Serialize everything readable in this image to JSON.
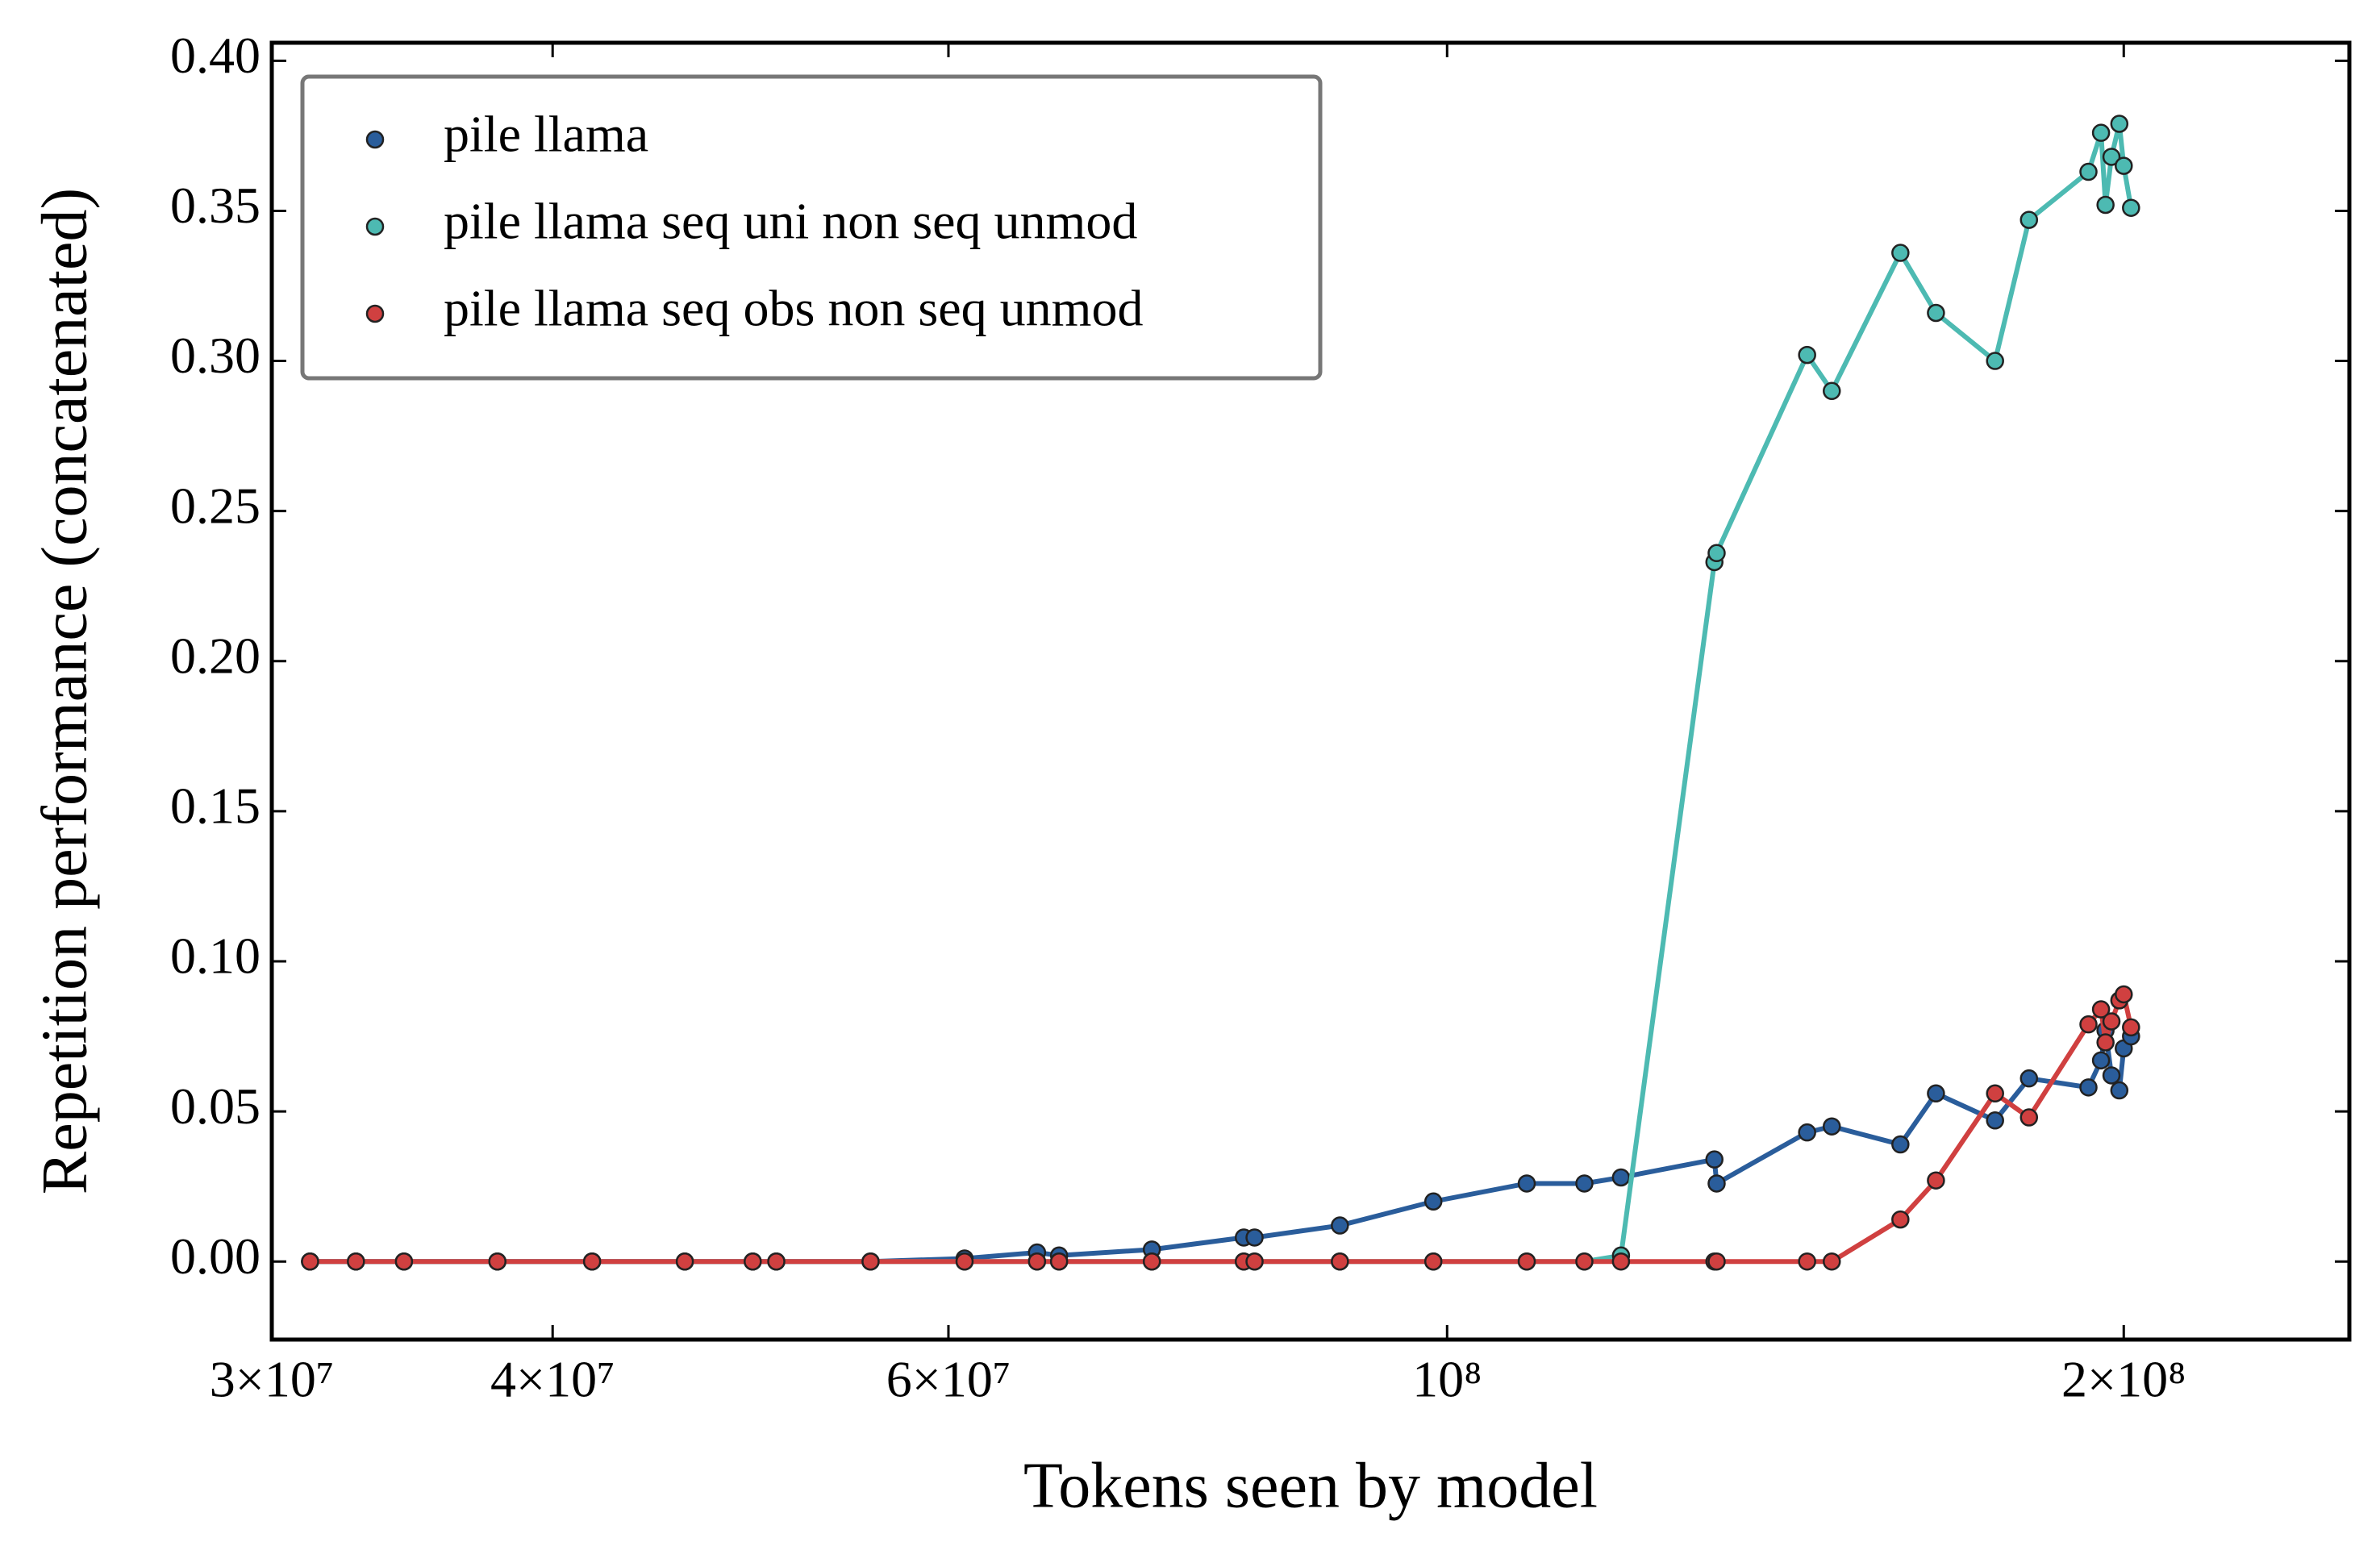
{
  "chart_data": {
    "type": "line",
    "xlabel": "Tokens seen by model",
    "ylabel": "Repetition performance (concatenated)",
    "xscale": "log",
    "legend": "upper left",
    "xlim": [
      30000000,
      252000000
    ],
    "ylim": [
      -0.026,
      0.406
    ],
    "xticks": [
      {
        "value": 30000000,
        "label": "3×10⁷"
      },
      {
        "value": 40000000,
        "label": "4×10⁷"
      },
      {
        "value": 60000000,
        "label": "6×10⁷"
      },
      {
        "value": 100000000,
        "label": "10⁸"
      },
      {
        "value": 200000000,
        "label": "2×10⁸"
      }
    ],
    "yticks": [
      {
        "value": 0,
        "label": "0.00"
      },
      0.05,
      {
        "value": 0.1,
        "label": "0.10"
      },
      0.15,
      {
        "value": 0.2,
        "label": "0.20"
      },
      0.25,
      {
        "value": 0.3,
        "label": "0.30"
      },
      0.35,
      {
        "value": 0.4,
        "label": "0.40"
      }
    ],
    "x": [
      31200000,
      32700000,
      34350000,
      37800000,
      41650000,
      45800000,
      49100000,
      50300000,
      55400000,
      61000000,
      65700000,
      67200000,
      73900000,
      81200000,
      82100000,
      89600000,
      98600000,
      108500000,
      115100000,
      119500000,
      131500000,
      131800000,
      144600000,
      148300000,
      159100000,
      165000000,
      175300000,
      181500000,
      192900000,
      195400000,
      196300000,
      197500000,
      199100000,
      200000000,
      201500000
    ],
    "series": [
      {
        "name": "pile llama",
        "color": "#2a5d9b",
        "values": [
          0,
          0,
          0,
          0,
          0,
          0,
          0,
          0,
          0,
          0.001,
          0.003,
          0.002,
          0.004,
          0.008,
          0.008,
          0.012,
          0.02,
          0.026,
          0.026,
          0.028,
          0.034,
          0.026,
          0.043,
          0.045,
          0.039,
          0.056,
          0.047,
          0.061,
          0.058,
          0.067,
          0.077,
          0.062,
          0.057,
          0.071,
          0.075
        ]
      },
      {
        "name": "pile llama seq uni non seq unmod",
        "color": "#4dbab2",
        "values": [
          0,
          0,
          0,
          0,
          0,
          0,
          0,
          0,
          0,
          0,
          0,
          0,
          0,
          0,
          0,
          0,
          0,
          0,
          0,
          0.002,
          0.233,
          0.236,
          0.302,
          0.29,
          0.336,
          0.316,
          0.3,
          0.347,
          0.363,
          0.376,
          0.352,
          0.368,
          0.379,
          0.365,
          0.351
        ]
      },
      {
        "name": "pile llama seq obs non seq unmod",
        "color": "#d04040",
        "values": [
          0,
          0,
          0,
          0,
          0,
          0,
          0,
          0,
          0,
          0,
          0,
          0,
          0,
          0,
          0,
          0,
          0,
          0,
          0,
          0,
          0,
          0,
          0,
          0,
          0.014,
          0.027,
          0.056,
          0.048,
          0.079,
          0.084,
          0.073,
          0.08,
          0.087,
          0.089,
          0.078
        ]
      }
    ]
  }
}
